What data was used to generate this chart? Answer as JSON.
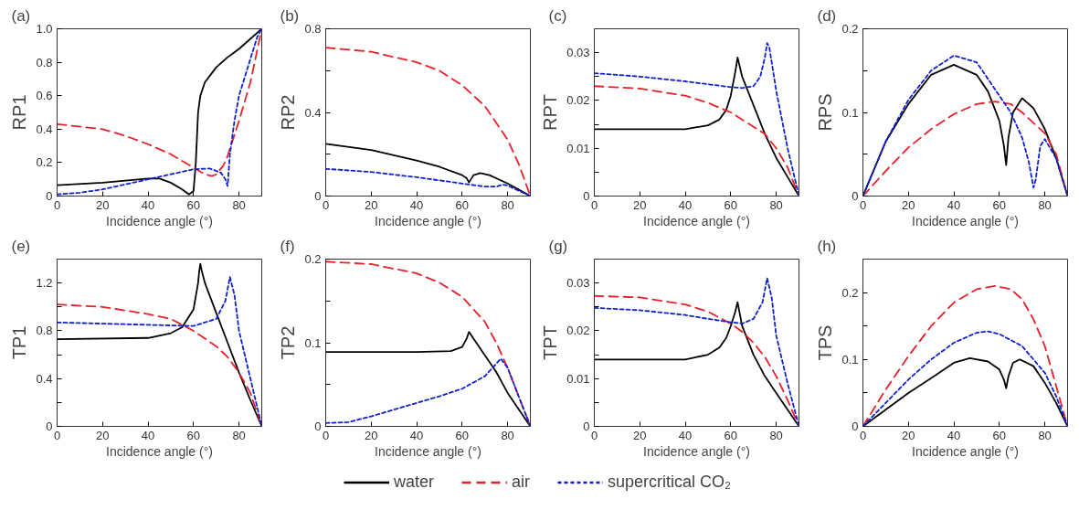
{
  "chart_data": [
    {
      "type": "line",
      "title": "(a)",
      "xlabel": "Incidence angle (°)",
      "ylabel": "RP1",
      "xlim": [
        0,
        90
      ],
      "xticks": [
        0,
        20,
        40,
        60,
        80
      ],
      "ylim": [
        0,
        1.0
      ],
      "yticks": [
        0,
        0.2,
        0.4,
        0.6,
        0.8,
        {
          "value": 1.0,
          "label": "1.0"
        }
      ],
      "legend": "bottom",
      "grid": false,
      "series": [
        {
          "name": "water",
          "color": "#000000",
          "line_style": "solid",
          "x": [
            0,
            20,
            40,
            45,
            50,
            55,
            58,
            60,
            61,
            62,
            63,
            65,
            70,
            75,
            80,
            85,
            90
          ],
          "values": [
            0.065,
            0.08,
            0.105,
            0.105,
            0.08,
            0.04,
            0.01,
            0.03,
            0.2,
            0.5,
            0.6,
            0.68,
            0.77,
            0.83,
            0.88,
            0.94,
            1.0
          ]
        },
        {
          "name": "air",
          "color": "#e8202a",
          "line_style": "dashed",
          "x": [
            0,
            20,
            30,
            40,
            50,
            60,
            65,
            68,
            70,
            73,
            75,
            80,
            85,
            90
          ],
          "values": [
            0.43,
            0.4,
            0.36,
            0.31,
            0.25,
            0.17,
            0.13,
            0.12,
            0.13,
            0.18,
            0.24,
            0.45,
            0.68,
            1.0
          ]
        },
        {
          "name": "supercritical CO₂",
          "color": "#1020d0",
          "line_style": "dotted",
          "x": [
            0,
            10,
            20,
            30,
            40,
            50,
            60,
            67,
            72,
            74,
            75,
            76,
            78,
            80,
            85,
            88,
            90
          ],
          "values": [
            0.01,
            0.02,
            0.04,
            0.07,
            0.1,
            0.13,
            0.16,
            0.165,
            0.14,
            0.1,
            0.06,
            0.25,
            0.45,
            0.6,
            0.82,
            0.95,
            1.0
          ]
        }
      ]
    },
    {
      "type": "line",
      "title": "(b)",
      "xlabel": "Incidence angle (°)",
      "ylabel": "RP2",
      "xlim": [
        0,
        90
      ],
      "xticks": [
        0,
        20,
        40,
        60,
        80
      ],
      "ylim": [
        0,
        0.8
      ],
      "yticks": [
        0,
        {
          "value": 0.2,
          "label": null
        },
        0.4,
        {
          "value": 0.6,
          "label": null
        },
        0.8
      ],
      "grid": false,
      "series": [
        {
          "color": "#000000",
          "line_style": "solid",
          "x": [
            0,
            20,
            40,
            50,
            60,
            62,
            63,
            65,
            68,
            72,
            80,
            85,
            90
          ],
          "values": [
            0.25,
            0.22,
            0.17,
            0.14,
            0.1,
            0.085,
            0.065,
            0.1,
            0.11,
            0.1,
            0.06,
            0.03,
            0
          ]
        },
        {
          "color": "#e8202a",
          "line_style": "dashed",
          "x": [
            0,
            20,
            40,
            50,
            60,
            70,
            80,
            85,
            90
          ],
          "values": [
            0.71,
            0.69,
            0.64,
            0.6,
            0.53,
            0.43,
            0.27,
            0.15,
            0
          ]
        },
        {
          "color": "#1020d0",
          "line_style": "dotted",
          "x": [
            0,
            20,
            40,
            60,
            70,
            75,
            78,
            80,
            85,
            90
          ],
          "values": [
            0.13,
            0.115,
            0.09,
            0.06,
            0.045,
            0.045,
            0.055,
            0.05,
            0.025,
            0
          ]
        }
      ]
    },
    {
      "type": "line",
      "title": "(c)",
      "xlabel": "Incidence angle (°)",
      "ylabel": "RPT",
      "xlim": [
        0,
        90
      ],
      "xticks": [
        0,
        20,
        40,
        60,
        80
      ],
      "ylim": [
        0,
        0.035
      ],
      "yticks": [
        0,
        {
          "value": 0.005,
          "label": null
        },
        0.01,
        {
          "value": 0.015,
          "label": null
        },
        0.02,
        {
          "value": 0.025,
          "label": null
        },
        0.03
      ],
      "grid": false,
      "series": [
        {
          "color": "#000000",
          "line_style": "solid",
          "x": [
            0,
            40,
            50,
            55,
            58,
            60,
            62,
            63,
            65,
            70,
            75,
            80,
            85,
            90
          ],
          "values": [
            0.014,
            0.014,
            0.0148,
            0.016,
            0.018,
            0.021,
            0.026,
            0.029,
            0.025,
            0.019,
            0.013,
            0.008,
            0.004,
            0
          ]
        },
        {
          "color": "#e8202a",
          "line_style": "dashed",
          "x": [
            0,
            20,
            40,
            50,
            60,
            70,
            75,
            80,
            85,
            90
          ],
          "values": [
            0.023,
            0.0225,
            0.021,
            0.0195,
            0.0175,
            0.0145,
            0.013,
            0.01,
            0.006,
            0
          ]
        },
        {
          "color": "#1020d0",
          "line_style": "dotted",
          "x": [
            0,
            20,
            40,
            60,
            65,
            70,
            73,
            75,
            76,
            77,
            80,
            85,
            90
          ],
          "values": [
            0.0257,
            0.025,
            0.024,
            0.0228,
            0.0226,
            0.023,
            0.025,
            0.029,
            0.032,
            0.031,
            0.022,
            0.01,
            0
          ]
        }
      ]
    },
    {
      "type": "line",
      "title": "(d)",
      "xlabel": "Incidence angle (°)",
      "ylabel": "RPS",
      "xlim": [
        0,
        90
      ],
      "xticks": [
        0,
        20,
        40,
        60,
        80
      ],
      "ylim": [
        0,
        0.2
      ],
      "yticks": [
        0,
        {
          "value": 0.05,
          "label": null
        },
        0.1,
        {
          "value": 0.15,
          "label": null
        },
        0.2
      ],
      "grid": false,
      "series": [
        {
          "color": "#000000",
          "line_style": "solid",
          "x": [
            0,
            10,
            20,
            30,
            40,
            50,
            55,
            60,
            62,
            63,
            64,
            66,
            70,
            75,
            80,
            85,
            90
          ],
          "values": [
            0,
            0.065,
            0.11,
            0.145,
            0.157,
            0.145,
            0.125,
            0.09,
            0.06,
            0.037,
            0.07,
            0.1,
            0.117,
            0.105,
            0.08,
            0.045,
            0
          ]
        },
        {
          "color": "#e8202a",
          "line_style": "dashed",
          "x": [
            0,
            10,
            20,
            30,
            40,
            50,
            58,
            65,
            70,
            80,
            85,
            90
          ],
          "values": [
            0,
            0.03,
            0.058,
            0.08,
            0.098,
            0.11,
            0.113,
            0.11,
            0.1,
            0.075,
            0.05,
            0
          ]
        },
        {
          "color": "#1020d0",
          "line_style": "dotted",
          "x": [
            0,
            10,
            20,
            30,
            40,
            50,
            60,
            65,
            70,
            73,
            75,
            76,
            78,
            80,
            85,
            90
          ],
          "values": [
            0,
            0.065,
            0.115,
            0.15,
            0.168,
            0.16,
            0.12,
            0.1,
            0.07,
            0.04,
            0.01,
            0.02,
            0.06,
            0.068,
            0.045,
            0
          ]
        }
      ]
    },
    {
      "type": "line",
      "title": "(e)",
      "xlabel": "Incidence angle (°)",
      "ylabel": "TP1",
      "xlim": [
        0,
        90
      ],
      "xticks": [
        0,
        20,
        40,
        60,
        80
      ],
      "ylim": [
        0,
        1.4
      ],
      "yticks": [
        0,
        {
          "value": 0.2,
          "label": null
        },
        0.4,
        {
          "value": 0.6,
          "label": null
        },
        0.8,
        {
          "value": 1.0,
          "label": null
        },
        1.2
      ],
      "grid": false,
      "series": [
        {
          "color": "#000000",
          "line_style": "solid",
          "x": [
            0,
            40,
            50,
            55,
            60,
            62,
            62.5,
            63,
            63.5,
            65,
            70,
            75,
            80,
            85,
            90
          ],
          "values": [
            0.73,
            0.74,
            0.78,
            0.83,
            0.98,
            1.2,
            1.3,
            1.36,
            1.31,
            1.2,
            0.95,
            0.7,
            0.45,
            0.22,
            0
          ]
        },
        {
          "color": "#e8202a",
          "line_style": "dashed",
          "x": [
            0,
            20,
            40,
            50,
            60,
            70,
            75,
            80,
            85,
            90
          ],
          "values": [
            1.02,
            1.0,
            0.94,
            0.9,
            0.8,
            0.67,
            0.58,
            0.45,
            0.28,
            0
          ]
        },
        {
          "color": "#1020d0",
          "line_style": "dotted",
          "x": [
            0,
            20,
            40,
            60,
            70,
            74,
            76,
            78,
            80,
            85,
            90
          ],
          "values": [
            0.87,
            0.86,
            0.85,
            0.84,
            0.9,
            1.05,
            1.25,
            1.1,
            0.8,
            0.4,
            0
          ]
        }
      ]
    },
    {
      "type": "line",
      "title": "(f)",
      "xlabel": "Incidence angle (°)",
      "ylabel": "TP2",
      "xlim": [
        0,
        90
      ],
      "xticks": [
        0,
        20,
        40,
        60,
        80
      ],
      "ylim": [
        0,
        0.2
      ],
      "yticks": [
        0,
        {
          "value": 0.05,
          "label": null
        },
        0.1,
        {
          "value": 0.15,
          "label": null
        },
        0.2
      ],
      "grid": false,
      "series": [
        {
          "color": "#000000",
          "line_style": "solid",
          "x": [
            0,
            40,
            55,
            60,
            62,
            63,
            65,
            70,
            75,
            80,
            85,
            90
          ],
          "values": [
            0.089,
            0.089,
            0.09,
            0.095,
            0.105,
            0.113,
            0.105,
            0.085,
            0.065,
            0.04,
            0.02,
            0
          ]
        },
        {
          "color": "#e8202a",
          "line_style": "dashed",
          "x": [
            0,
            20,
            40,
            50,
            60,
            70,
            75,
            80,
            85,
            90
          ],
          "values": [
            0.197,
            0.194,
            0.183,
            0.172,
            0.155,
            0.125,
            0.1,
            0.07,
            0.035,
            0
          ]
        },
        {
          "color": "#1020d0",
          "line_style": "dotted",
          "x": [
            0,
            10,
            20,
            30,
            40,
            50,
            60,
            70,
            75,
            77,
            80,
            85,
            90
          ],
          "values": [
            0.004,
            0.005,
            0.012,
            0.02,
            0.028,
            0.036,
            0.045,
            0.06,
            0.075,
            0.081,
            0.07,
            0.035,
            0
          ]
        }
      ]
    },
    {
      "type": "line",
      "title": "(g)",
      "xlabel": "Incidence angle (°)",
      "ylabel": "TPT",
      "xlim": [
        0,
        90
      ],
      "xticks": [
        0,
        20,
        40,
        60,
        80
      ],
      "ylim": [
        0,
        0.035
      ],
      "yticks": [
        0,
        {
          "value": 0.005,
          "label": null
        },
        0.01,
        {
          "value": 0.015,
          "label": null
        },
        0.02,
        {
          "value": 0.025,
          "label": null
        },
        0.03
      ],
      "grid": false,
      "series": [
        {
          "color": "#000000",
          "line_style": "solid",
          "x": [
            0,
            40,
            50,
            55,
            58,
            60,
            62,
            63,
            65,
            70,
            75,
            80,
            85,
            90
          ],
          "values": [
            0.014,
            0.014,
            0.015,
            0.0165,
            0.0185,
            0.021,
            0.024,
            0.026,
            0.021,
            0.015,
            0.0105,
            0.007,
            0.0035,
            0
          ]
        },
        {
          "color": "#e8202a",
          "line_style": "dashed",
          "x": [
            0,
            20,
            40,
            50,
            60,
            65,
            70,
            75,
            80,
            85,
            90
          ],
          "values": [
            0.0273,
            0.027,
            0.0255,
            0.024,
            0.0215,
            0.0198,
            0.0175,
            0.0145,
            0.0105,
            0.0055,
            0
          ]
        },
        {
          "color": "#1020d0",
          "line_style": "dotted",
          "x": [
            0,
            20,
            40,
            50,
            60,
            65,
            70,
            74,
            76,
            78,
            80,
            85,
            90
          ],
          "values": [
            0.0248,
            0.0243,
            0.0233,
            0.0225,
            0.0218,
            0.0215,
            0.0225,
            0.026,
            0.031,
            0.027,
            0.019,
            0.009,
            0
          ]
        }
      ]
    },
    {
      "type": "line",
      "title": "(h)",
      "xlabel": "Incidence angle (°)",
      "ylabel": "TPS",
      "xlim": [
        0,
        90
      ],
      "xticks": [
        0,
        20,
        40,
        60,
        80
      ],
      "ylim": [
        0,
        0.25
      ],
      "yticks": [
        0,
        {
          "value": 0.05,
          "label": null
        },
        0.1,
        {
          "value": 0.15,
          "label": null
        },
        0.2
      ],
      "grid": false,
      "series": [
        {
          "color": "#000000",
          "line_style": "solid",
          "x": [
            0,
            10,
            20,
            30,
            40,
            47,
            55,
            60,
            62,
            63,
            64,
            66,
            69,
            75,
            80,
            85,
            90
          ],
          "values": [
            0,
            0.025,
            0.05,
            0.072,
            0.095,
            0.102,
            0.097,
            0.085,
            0.07,
            0.057,
            0.075,
            0.095,
            0.1,
            0.09,
            0.065,
            0.035,
            0
          ]
        },
        {
          "color": "#e8202a",
          "line_style": "dashed",
          "x": [
            0,
            10,
            20,
            30,
            40,
            50,
            58,
            65,
            70,
            75,
            80,
            85,
            90
          ],
          "values": [
            0,
            0.055,
            0.105,
            0.15,
            0.185,
            0.205,
            0.21,
            0.205,
            0.19,
            0.16,
            0.12,
            0.06,
            0
          ]
        },
        {
          "color": "#1020d0",
          "line_style": "dotted",
          "x": [
            0,
            10,
            20,
            30,
            40,
            50,
            55,
            60,
            70,
            80,
            85,
            90
          ],
          "values": [
            0,
            0.035,
            0.07,
            0.1,
            0.125,
            0.14,
            0.142,
            0.138,
            0.12,
            0.08,
            0.045,
            0
          ]
        }
      ]
    }
  ]
}
